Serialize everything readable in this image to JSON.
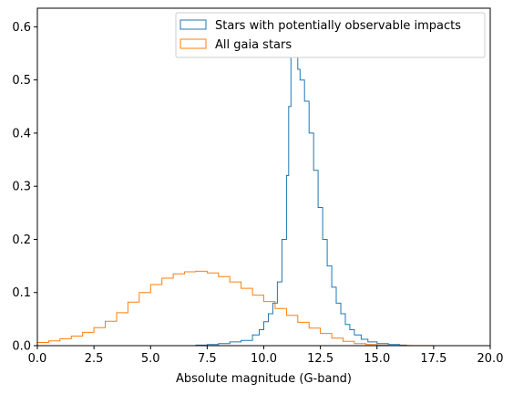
{
  "chart_data": {
    "type": "step",
    "title": "",
    "xlabel": "Absolute magnitude (G-band)",
    "ylabel": "",
    "xlim": [
      0.0,
      20.0
    ],
    "ylim": [
      0.0,
      0.635
    ],
    "xticks": [
      "0.0",
      "2.5",
      "5.0",
      "7.5",
      "10.0",
      "12.5",
      "15.0",
      "17.5",
      "20.0"
    ],
    "yticks": [
      "0.0",
      "0.1",
      "0.2",
      "0.3",
      "0.4",
      "0.5",
      "0.6"
    ],
    "grid": false,
    "legend_position": "top-right",
    "series": [
      {
        "name": "Stars with potentially observable impacts",
        "color": "#1f77b4",
        "x": [
          6.6,
          7.0,
          7.5,
          8.0,
          8.5,
          9.0,
          9.5,
          9.8,
          10.0,
          10.2,
          10.4,
          10.6,
          10.8,
          11.0,
          11.1,
          11.2,
          11.3,
          11.4,
          11.5,
          11.6,
          11.8,
          12.0,
          12.2,
          12.4,
          12.6,
          12.8,
          13.0,
          13.2,
          13.4,
          13.6,
          13.8,
          14.0,
          14.3,
          14.6,
          15.0,
          15.5,
          16.0,
          16.3
        ],
        "y": [
          0.0,
          0.001,
          0.002,
          0.004,
          0.007,
          0.01,
          0.02,
          0.03,
          0.045,
          0.06,
          0.08,
          0.12,
          0.2,
          0.32,
          0.45,
          0.58,
          0.59,
          0.55,
          0.52,
          0.5,
          0.46,
          0.4,
          0.33,
          0.26,
          0.2,
          0.15,
          0.11,
          0.08,
          0.06,
          0.04,
          0.03,
          0.02,
          0.012,
          0.007,
          0.004,
          0.002,
          0.001,
          0.0
        ]
      },
      {
        "name": "All gaia stars",
        "color": "#ff7f0e",
        "x": [
          0.0,
          0.5,
          1.0,
          1.5,
          2.0,
          2.5,
          3.0,
          3.5,
          4.0,
          4.5,
          5.0,
          5.5,
          6.0,
          6.5,
          7.0,
          7.5,
          8.0,
          8.5,
          9.0,
          9.5,
          10.0,
          10.5,
          11.0,
          11.5,
          12.0,
          12.5,
          13.0,
          13.5,
          14.0,
          14.5,
          15.0,
          15.5,
          16.0,
          16.5,
          17.0,
          17.5
        ],
        "y": [
          0.006,
          0.009,
          0.013,
          0.018,
          0.025,
          0.034,
          0.046,
          0.062,
          0.082,
          0.1,
          0.115,
          0.127,
          0.135,
          0.139,
          0.14,
          0.137,
          0.13,
          0.12,
          0.108,
          0.095,
          0.083,
          0.07,
          0.057,
          0.044,
          0.033,
          0.023,
          0.014,
          0.008,
          0.004,
          0.002,
          0.001,
          0.0005,
          0.0003,
          0.0002,
          0.0001,
          0.0
        ]
      }
    ]
  }
}
